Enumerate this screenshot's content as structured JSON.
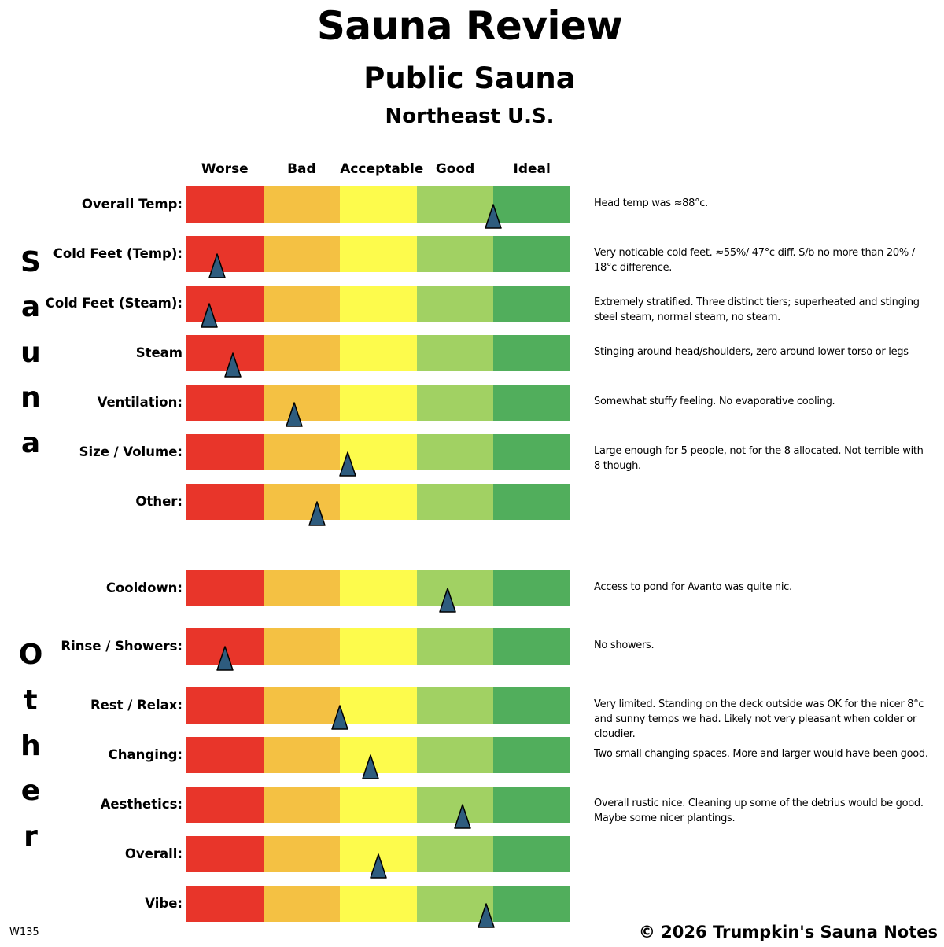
{
  "header": {
    "title": "Sauna Review",
    "subtitle": "Public Sauna",
    "location": "Northeast U.S."
  },
  "scale": {
    "labels": [
      "Worse",
      "Bad",
      "Acceptable",
      "Good",
      "Ideal"
    ],
    "colors": [
      "#E8352A",
      "#F4C143",
      "#FDFB4C",
      "#A1D163",
      "#51AE5C"
    ]
  },
  "marker_color": "#2E5C7E",
  "sections": [
    {
      "label": "Sauna",
      "rows": [
        {
          "label": "Overall Temp:",
          "rating": 4.0,
          "note": "Head temp was ≈88°c."
        },
        {
          "label": "Cold Feet (Temp):",
          "rating": 0.4,
          "note": "Very noticable cold feet. ≈55%/ 47°c diff.  S/b no more than 20% / 18°c difference."
        },
        {
          "label": "Cold Feet (Steam):",
          "rating": 0.3,
          "note": "Extremely stratified. Three distinct tiers; superheated and stinging steel steam, normal steam, no steam."
        },
        {
          "label": "Steam",
          "rating": 0.6,
          "note": "Stinging around head/shoulders, zero around lower torso or legs"
        },
        {
          "label": "Ventilation:",
          "rating": 1.4,
          "note": "Somewhat stuffy feeling. No evaporative cooling."
        },
        {
          "label": "Size / Volume:",
          "rating": 2.1,
          "note": "Large enough for 5 people, not for the 8 allocated. Not terrible with 8 though."
        },
        {
          "label": "Other:",
          "rating": 1.7,
          "note": ""
        }
      ]
    },
    {
      "label": "Other",
      "rows": [
        {
          "label": "Cooldown:",
          "rating": 3.4,
          "note": "Access to pond for Avanto was quite nic."
        },
        {
          "label": "Rinse / Showers:",
          "rating": 0.5,
          "note": "No showers."
        },
        {
          "label": "Rest / Relax:",
          "rating": 2.0,
          "note": "Very limited. Standing on the deck outside was OK for the nicer 8°c and sunny temps we had. Likely not very pleasant when colder or cloudier."
        },
        {
          "label": "Changing:",
          "rating": 2.4,
          "note": "Two small changing spaces. More and larger would have been good."
        },
        {
          "label": "Aesthetics:",
          "rating": 3.6,
          "note": "Overall rustic nice. Cleaning up some of the detrius would be good. Maybe some nicer plantings."
        },
        {
          "label": "Overall:",
          "rating": 2.5,
          "note": ""
        },
        {
          "label": "Vibe:",
          "rating": 3.9,
          "note": ""
        }
      ]
    }
  ],
  "footer": {
    "code": "W135",
    "copyright": "© 2026 Trumpkin's Sauna Notes"
  }
}
